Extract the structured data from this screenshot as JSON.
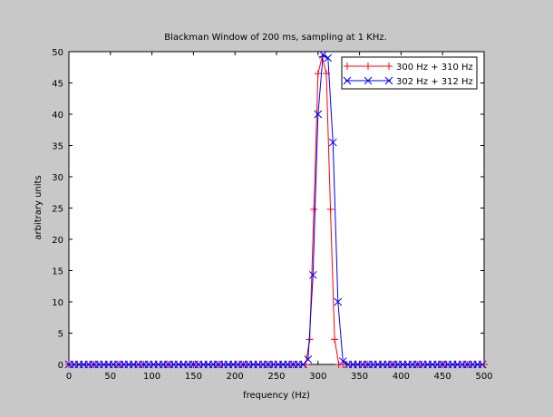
{
  "chart_data": {
    "type": "line",
    "title": "Blackman Window of 200 ms, sampling at 1 KHz.",
    "xlabel": "frequency (Hz)",
    "ylabel": "arbitrary units",
    "xlim": [
      0,
      500
    ],
    "ylim": [
      0,
      50
    ],
    "xticks": [
      0,
      50,
      100,
      150,
      200,
      250,
      300,
      350,
      400,
      450,
      500
    ],
    "yticks": [
      0,
      5,
      10,
      15,
      20,
      25,
      30,
      35,
      40,
      45,
      50
    ],
    "grid": false,
    "legend_position": "top-right",
    "series": [
      {
        "name": "300 Hz + 310 Hz",
        "color": "#ff0000",
        "marker": "plus",
        "x": [
          0,
          5,
          10,
          15,
          20,
          25,
          30,
          35,
          40,
          45,
          50,
          55,
          60,
          65,
          70,
          75,
          80,
          85,
          90,
          95,
          100,
          105,
          110,
          115,
          120,
          125,
          130,
          135,
          140,
          145,
          150,
          155,
          160,
          165,
          170,
          175,
          180,
          185,
          190,
          195,
          200,
          205,
          210,
          215,
          220,
          225,
          230,
          235,
          240,
          245,
          250,
          255,
          260,
          265,
          270,
          275,
          280,
          285,
          290,
          295,
          300,
          305,
          310,
          315,
          320,
          325,
          330,
          335,
          340,
          345,
          350,
          355,
          360,
          365,
          370,
          375,
          380,
          385,
          390,
          395,
          400,
          405,
          410,
          415,
          420,
          425,
          430,
          435,
          440,
          445,
          450,
          455,
          460,
          465,
          470,
          475,
          480,
          485,
          490,
          495,
          500
        ],
        "y": [
          0,
          0,
          0,
          0,
          0,
          0,
          0,
          0,
          0,
          0,
          0,
          0,
          0,
          0,
          0,
          0,
          0,
          0,
          0,
          0,
          0,
          0,
          0,
          0,
          0,
          0,
          0,
          0,
          0,
          0,
          0,
          0,
          0,
          0,
          0,
          0,
          0,
          0,
          0,
          0,
          0,
          0,
          0,
          0,
          0,
          0,
          0,
          0,
          0,
          0,
          0,
          0,
          0,
          0,
          0,
          0,
          0,
          0,
          4,
          24.8,
          46.5,
          49.2,
          46.5,
          24.8,
          4,
          0,
          0,
          0,
          0,
          0,
          0,
          0,
          0,
          0,
          0,
          0,
          0,
          0,
          0,
          0,
          0,
          0,
          0,
          0,
          0,
          0,
          0,
          0,
          0,
          0,
          0,
          0,
          0,
          0,
          0,
          0,
          0,
          0,
          0,
          0,
          0
        ]
      },
      {
        "name": "302 Hz + 312 Hz",
        "color": "#0000ff",
        "marker": "x",
        "x": [
          0,
          6,
          12,
          18,
          24,
          30,
          36,
          42,
          48,
          54,
          60,
          66,
          72,
          78,
          84,
          90,
          96,
          102,
          108,
          114,
          120,
          126,
          132,
          138,
          144,
          150,
          156,
          162,
          168,
          174,
          180,
          186,
          192,
          198,
          204,
          210,
          216,
          222,
          228,
          234,
          240,
          246,
          252,
          258,
          264,
          270,
          276,
          282,
          288,
          294,
          300,
          306,
          312,
          318,
          324,
          330,
          336,
          342,
          348,
          354,
          360,
          366,
          372,
          378,
          384,
          390,
          396,
          402,
          408,
          414,
          420,
          426,
          432,
          438,
          444,
          450,
          456,
          462,
          468,
          474,
          480,
          486,
          492,
          498
        ],
        "y": [
          0,
          0,
          0,
          0,
          0,
          0,
          0,
          0,
          0,
          0,
          0,
          0,
          0,
          0,
          0,
          0,
          0,
          0,
          0,
          0,
          0,
          0,
          0,
          0,
          0,
          0,
          0,
          0,
          0,
          0,
          0,
          0,
          0,
          0,
          0,
          0,
          0,
          0,
          0,
          0,
          0,
          0,
          0,
          0,
          0,
          0,
          0,
          0,
          0.8,
          14.3,
          40,
          49.5,
          49,
          35.5,
          10,
          0.5,
          0,
          0,
          0,
          0,
          0,
          0,
          0,
          0,
          0,
          0,
          0,
          0,
          0,
          0,
          0,
          0,
          0,
          0,
          0,
          0,
          0,
          0,
          0,
          0,
          0,
          0,
          0,
          0
        ]
      }
    ]
  }
}
